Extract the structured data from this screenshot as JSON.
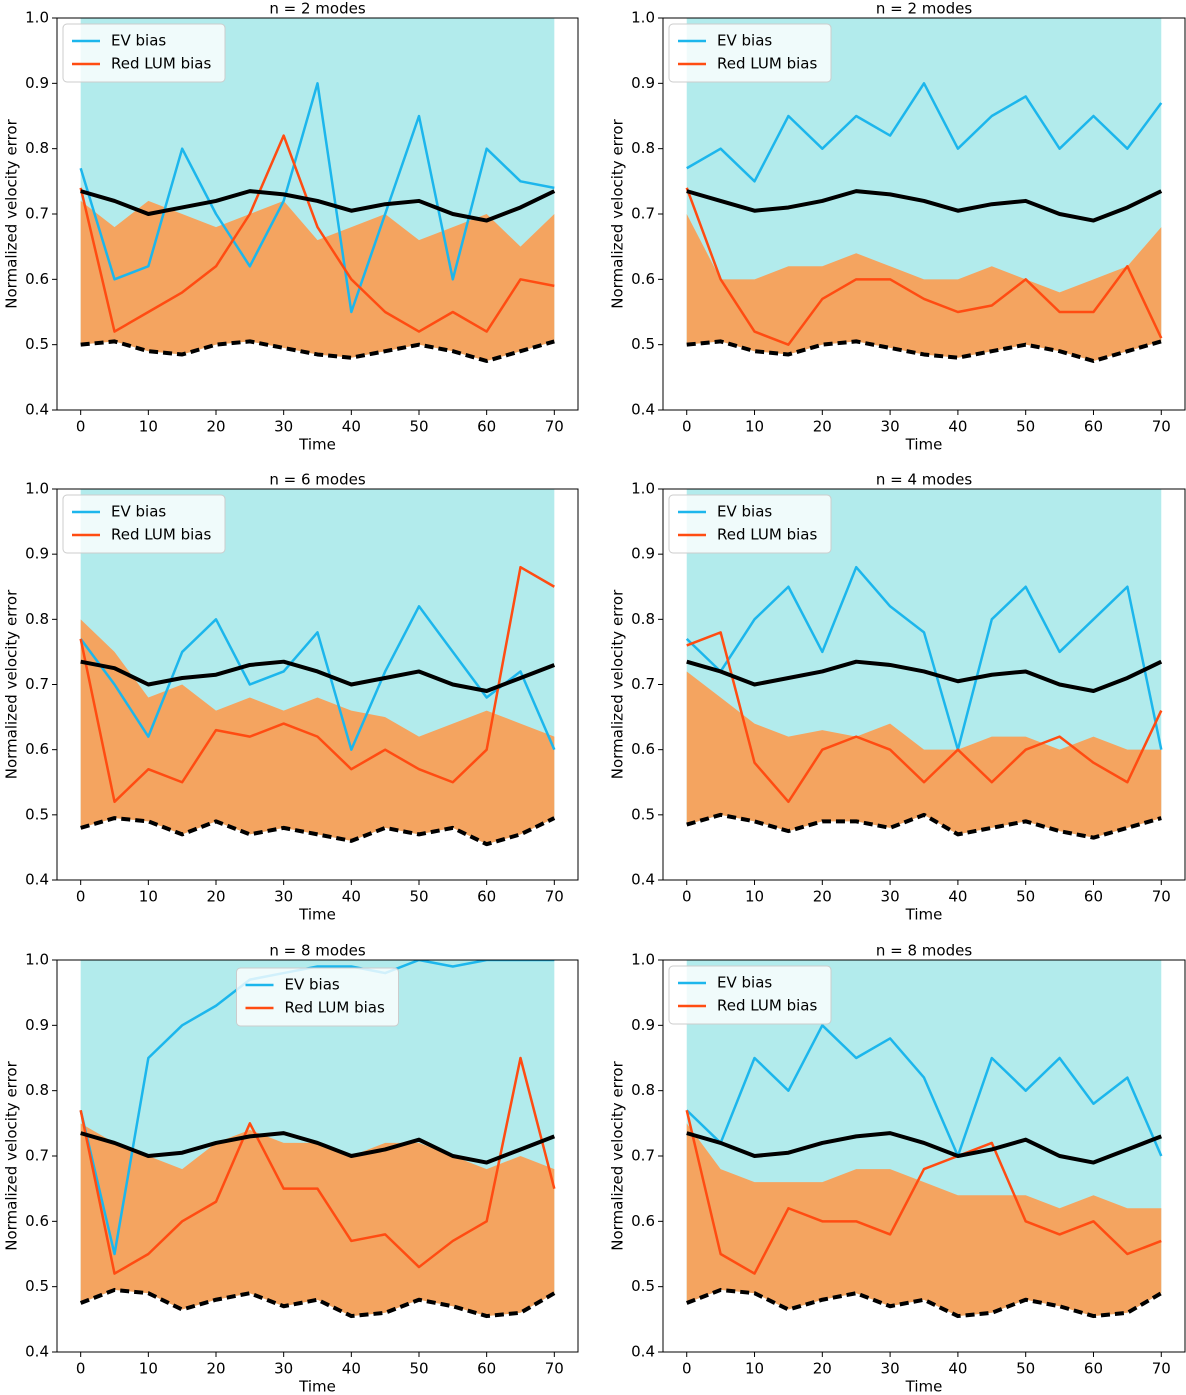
{
  "chart_data": [
    {
      "type": "line",
      "title": "n = 2 modes",
      "xlabel": "Time",
      "ylabel": "Normalized velocity error",
      "legend": "upper left",
      "x": [
        0,
        5,
        10,
        15,
        20,
        25,
        30,
        35,
        40,
        45,
        50,
        55,
        60,
        65,
        70
      ],
      "xlim": [
        -3.5,
        73.5
      ],
      "ylim": [
        0.4,
        1
      ],
      "xticks": [
        0,
        10,
        20,
        30,
        40,
        50,
        60,
        70
      ],
      "yticks": [
        0.4,
        0.5,
        0.6,
        0.7,
        0.8,
        0.9,
        {
          "value": 1,
          "label": "1.0"
        }
      ],
      "fill_from_series": 3,
      "bands": [
        {
          "color": "#b2ebec",
          "upper": [
            1,
            1,
            1,
            1,
            1,
            1,
            1,
            1,
            1,
            1,
            1,
            1,
            1,
            1,
            1
          ]
        },
        {
          "color": "#f4a460",
          "upper": [
            0.72,
            0.68,
            0.72,
            0.7,
            0.68,
            0.7,
            0.72,
            0.66,
            0.68,
            0.7,
            0.66,
            0.68,
            0.7,
            0.65,
            0.7
          ]
        }
      ],
      "series": [
        {
          "name": "EV bias",
          "color": "#1cb6ec",
          "values": [
            0.77,
            0.6,
            0.62,
            0.8,
            0.7,
            0.62,
            0.72,
            0.9,
            0.55,
            0.7,
            0.85,
            0.6,
            0.8,
            0.75,
            0.74
          ]
        },
        {
          "name": "Red LUM bias",
          "color": "#ff4c12",
          "values": [
            0.74,
            0.52,
            0.55,
            0.58,
            0.62,
            0.7,
            0.82,
            0.68,
            0.6,
            0.55,
            0.52,
            0.55,
            0.52,
            0.6,
            0.59
          ]
        },
        {
          "color": "#000000",
          "values": [
            0.735,
            0.72,
            0.7,
            0.71,
            0.72,
            0.735,
            0.73,
            0.72,
            0.705,
            0.715,
            0.72,
            0.7,
            0.69,
            0.71,
            0.735
          ]
        },
        {
          "color": "#000000",
          "dashed": true,
          "values": [
            0.5,
            0.505,
            0.49,
            0.485,
            0.5,
            0.505,
            0.495,
            0.485,
            0.48,
            0.49,
            0.5,
            0.49,
            0.475,
            0.49,
            0.505
          ]
        }
      ]
    },
    {
      "type": "line",
      "title": "n = 2 modes",
      "xlabel": "Time",
      "ylabel": "Normalized velocity error",
      "legend": "upper left",
      "x": [
        0,
        5,
        10,
        15,
        20,
        25,
        30,
        35,
        40,
        45,
        50,
        55,
        60,
        65,
        70
      ],
      "xlim": [
        -3.5,
        73.5
      ],
      "ylim": [
        0.4,
        1
      ],
      "xticks": [
        0,
        10,
        20,
        30,
        40,
        50,
        60,
        70
      ],
      "yticks": [
        0.4,
        0.5,
        0.6,
        0.7,
        0.8,
        0.9,
        {
          "value": 1,
          "label": "1.0"
        }
      ],
      "fill_from_series": 3,
      "bands": [
        {
          "color": "#b2ebec",
          "upper": [
            1,
            1,
            1,
            1,
            1,
            1,
            1,
            1,
            1,
            1,
            1,
            1,
            1,
            1,
            1
          ]
        },
        {
          "color": "#f4a460",
          "upper": [
            0.7,
            0.6,
            0.6,
            0.62,
            0.62,
            0.64,
            0.62,
            0.6,
            0.6,
            0.62,
            0.6,
            0.58,
            0.6,
            0.62,
            0.68
          ]
        }
      ],
      "series": [
        {
          "name": "EV bias",
          "color": "#1cb6ec",
          "values": [
            0.77,
            0.8,
            0.75,
            0.85,
            0.8,
            0.85,
            0.82,
            0.9,
            0.8,
            0.85,
            0.88,
            0.8,
            0.85,
            0.8,
            0.87
          ]
        },
        {
          "name": "Red LUM bias",
          "color": "#ff4c12",
          "values": [
            0.74,
            0.6,
            0.52,
            0.5,
            0.57,
            0.6,
            0.6,
            0.57,
            0.55,
            0.56,
            0.6,
            0.55,
            0.55,
            0.62,
            0.51
          ]
        },
        {
          "color": "#000000",
          "values": [
            0.735,
            0.72,
            0.705,
            0.71,
            0.72,
            0.735,
            0.73,
            0.72,
            0.705,
            0.715,
            0.72,
            0.7,
            0.69,
            0.71,
            0.735
          ]
        },
        {
          "color": "#000000",
          "dashed": true,
          "values": [
            0.5,
            0.505,
            0.49,
            0.485,
            0.5,
            0.505,
            0.495,
            0.485,
            0.48,
            0.49,
            0.5,
            0.49,
            0.475,
            0.49,
            0.505
          ]
        }
      ]
    },
    {
      "type": "line",
      "title": "n = 6 modes",
      "xlabel": "Time",
      "ylabel": "Normalized velocity error",
      "legend": "upper left",
      "x": [
        0,
        5,
        10,
        15,
        20,
        25,
        30,
        35,
        40,
        45,
        50,
        55,
        60,
        65,
        70
      ],
      "xlim": [
        -3.5,
        73.5
      ],
      "ylim": [
        0.4,
        1
      ],
      "xticks": [
        0,
        10,
        20,
        30,
        40,
        50,
        60,
        70
      ],
      "yticks": [
        0.4,
        0.5,
        0.6,
        0.7,
        0.8,
        0.9,
        {
          "value": 1,
          "label": "1.0"
        }
      ],
      "fill_from_series": 3,
      "bands": [
        {
          "color": "#b2ebec",
          "upper": [
            1,
            1,
            1,
            1,
            1,
            1,
            1,
            1,
            1,
            1,
            1,
            1,
            1,
            1,
            1
          ]
        },
        {
          "color": "#f4a460",
          "upper": [
            0.8,
            0.75,
            0.68,
            0.7,
            0.66,
            0.68,
            0.66,
            0.68,
            0.66,
            0.65,
            0.62,
            0.64,
            0.66,
            0.64,
            0.62
          ]
        }
      ],
      "series": [
        {
          "name": "EV bias",
          "color": "#1cb6ec",
          "values": [
            0.77,
            0.7,
            0.62,
            0.75,
            0.8,
            0.7,
            0.72,
            0.78,
            0.6,
            0.72,
            0.82,
            0.75,
            0.68,
            0.72,
            0.6
          ]
        },
        {
          "name": "Red LUM bias",
          "color": "#ff4c12",
          "values": [
            0.77,
            0.52,
            0.57,
            0.55,
            0.63,
            0.62,
            0.64,
            0.62,
            0.57,
            0.6,
            0.57,
            0.55,
            0.6,
            0.88,
            0.85
          ]
        },
        {
          "color": "#000000",
          "values": [
            0.735,
            0.725,
            0.7,
            0.71,
            0.715,
            0.73,
            0.735,
            0.72,
            0.7,
            0.71,
            0.72,
            0.7,
            0.69,
            0.71,
            0.73
          ]
        },
        {
          "color": "#000000",
          "dashed": true,
          "values": [
            0.48,
            0.495,
            0.49,
            0.47,
            0.49,
            0.47,
            0.48,
            0.47,
            0.46,
            0.48,
            0.47,
            0.48,
            0.455,
            0.47,
            0.495
          ]
        }
      ]
    },
    {
      "type": "line",
      "title": "n = 4 modes",
      "xlabel": "Time",
      "ylabel": "Normalized velocity error",
      "legend": "upper left",
      "x": [
        0,
        5,
        10,
        15,
        20,
        25,
        30,
        35,
        40,
        45,
        50,
        55,
        60,
        65,
        70
      ],
      "xlim": [
        -3.5,
        73.5
      ],
      "ylim": [
        0.4,
        1
      ],
      "xticks": [
        0,
        10,
        20,
        30,
        40,
        50,
        60,
        70
      ],
      "yticks": [
        0.4,
        0.5,
        0.6,
        0.7,
        0.8,
        0.9,
        {
          "value": 1,
          "label": "1.0"
        }
      ],
      "fill_from_series": 3,
      "bands": [
        {
          "color": "#b2ebec",
          "upper": [
            1,
            1,
            1,
            1,
            1,
            1,
            1,
            1,
            1,
            1,
            1,
            1,
            1,
            1,
            1
          ]
        },
        {
          "color": "#f4a460",
          "upper": [
            0.72,
            0.68,
            0.64,
            0.62,
            0.63,
            0.62,
            0.64,
            0.6,
            0.6,
            0.62,
            0.62,
            0.6,
            0.62,
            0.6,
            0.6
          ]
        }
      ],
      "series": [
        {
          "name": "EV bias",
          "color": "#1cb6ec",
          "values": [
            0.77,
            0.72,
            0.8,
            0.85,
            0.75,
            0.88,
            0.82,
            0.78,
            0.6,
            0.8,
            0.85,
            0.75,
            0.8,
            0.85,
            0.6
          ]
        },
        {
          "name": "Red LUM bias",
          "color": "#ff4c12",
          "values": [
            0.76,
            0.78,
            0.58,
            0.52,
            0.6,
            0.62,
            0.6,
            0.55,
            0.6,
            0.55,
            0.6,
            0.62,
            0.58,
            0.55,
            0.66
          ]
        },
        {
          "color": "#000000",
          "values": [
            0.735,
            0.72,
            0.7,
            0.71,
            0.72,
            0.735,
            0.73,
            0.72,
            0.705,
            0.715,
            0.72,
            0.7,
            0.69,
            0.71,
            0.735
          ]
        },
        {
          "color": "#000000",
          "dashed": true,
          "values": [
            0.485,
            0.5,
            0.49,
            0.475,
            0.49,
            0.49,
            0.48,
            0.5,
            0.47,
            0.48,
            0.49,
            0.475,
            0.465,
            0.48,
            0.495
          ]
        }
      ]
    },
    {
      "type": "line",
      "title": "n = 8 modes",
      "xlabel": "Time",
      "ylabel": "Normalized velocity error",
      "legend": "upper center",
      "x": [
        0,
        5,
        10,
        15,
        20,
        25,
        30,
        35,
        40,
        45,
        50,
        55,
        60,
        65,
        70
      ],
      "xlim": [
        -3.5,
        73.5
      ],
      "ylim": [
        0.4,
        1
      ],
      "xticks": [
        0,
        10,
        20,
        30,
        40,
        50,
        60,
        70
      ],
      "yticks": [
        0.4,
        0.5,
        0.6,
        0.7,
        0.8,
        0.9,
        {
          "value": 1,
          "label": "1.0"
        }
      ],
      "fill_from_series": 3,
      "bands": [
        {
          "color": "#b2ebec",
          "upper": [
            1,
            1,
            1,
            1,
            1,
            1,
            1,
            1,
            1,
            1,
            1,
            1,
            1,
            1,
            1
          ]
        },
        {
          "color": "#f4a460",
          "upper": [
            0.75,
            0.72,
            0.7,
            0.68,
            0.72,
            0.74,
            0.72,
            0.72,
            0.7,
            0.72,
            0.72,
            0.7,
            0.68,
            0.7,
            0.68
          ]
        }
      ],
      "series": [
        {
          "name": "EV bias",
          "color": "#1cb6ec",
          "values": [
            0.77,
            0.55,
            0.85,
            0.9,
            0.93,
            0.97,
            0.98,
            0.99,
            0.99,
            0.98,
            1,
            0.99,
            1,
            1,
            1
          ]
        },
        {
          "name": "Red LUM bias",
          "color": "#ff4c12",
          "values": [
            0.77,
            0.52,
            0.55,
            0.6,
            0.63,
            0.75,
            0.65,
            0.65,
            0.57,
            0.58,
            0.53,
            0.57,
            0.6,
            0.85,
            0.65
          ]
        },
        {
          "color": "#000000",
          "values": [
            0.735,
            0.72,
            0.7,
            0.705,
            0.72,
            0.73,
            0.735,
            0.72,
            0.7,
            0.71,
            0.725,
            0.7,
            0.69,
            0.71,
            0.73
          ]
        },
        {
          "color": "#000000",
          "dashed": true,
          "values": [
            0.475,
            0.495,
            0.49,
            0.465,
            0.48,
            0.49,
            0.47,
            0.48,
            0.455,
            0.46,
            0.48,
            0.47,
            0.455,
            0.46,
            0.49
          ]
        }
      ]
    },
    {
      "type": "line",
      "title": "n = 8 modes",
      "xlabel": "Time",
      "ylabel": "Normalized velocity error",
      "legend": "upper left",
      "x": [
        0,
        5,
        10,
        15,
        20,
        25,
        30,
        35,
        40,
        45,
        50,
        55,
        60,
        65,
        70
      ],
      "xlim": [
        -3.5,
        73.5
      ],
      "ylim": [
        0.4,
        1
      ],
      "xticks": [
        0,
        10,
        20,
        30,
        40,
        50,
        60,
        70
      ],
      "yticks": [
        0.4,
        0.5,
        0.6,
        0.7,
        0.8,
        0.9,
        {
          "value": 1,
          "label": "1.0"
        }
      ],
      "fill_from_series": 3,
      "bands": [
        {
          "color": "#b2ebec",
          "upper": [
            1,
            1,
            1,
            1,
            1,
            1,
            1,
            1,
            1,
            1,
            1,
            1,
            1,
            1,
            1
          ]
        },
        {
          "color": "#f4a460",
          "upper": [
            0.75,
            0.68,
            0.66,
            0.66,
            0.66,
            0.68,
            0.68,
            0.66,
            0.64,
            0.64,
            0.64,
            0.62,
            0.64,
            0.62,
            0.62
          ]
        }
      ],
      "series": [
        {
          "name": "EV bias",
          "color": "#1cb6ec",
          "values": [
            0.77,
            0.72,
            0.85,
            0.8,
            0.9,
            0.85,
            0.88,
            0.82,
            0.7,
            0.85,
            0.8,
            0.85,
            0.78,
            0.82,
            0.7
          ]
        },
        {
          "name": "Red LUM bias",
          "color": "#ff4c12",
          "values": [
            0.77,
            0.55,
            0.52,
            0.62,
            0.6,
            0.6,
            0.58,
            0.68,
            0.7,
            0.72,
            0.6,
            0.58,
            0.6,
            0.55,
            0.57
          ]
        },
        {
          "color": "#000000",
          "values": [
            0.735,
            0.72,
            0.7,
            0.705,
            0.72,
            0.73,
            0.735,
            0.72,
            0.7,
            0.71,
            0.725,
            0.7,
            0.69,
            0.71,
            0.73
          ]
        },
        {
          "color": "#000000",
          "dashed": true,
          "values": [
            0.475,
            0.495,
            0.49,
            0.465,
            0.48,
            0.49,
            0.47,
            0.48,
            0.455,
            0.46,
            0.48,
            0.47,
            0.455,
            0.46,
            0.49
          ]
        }
      ]
    }
  ]
}
